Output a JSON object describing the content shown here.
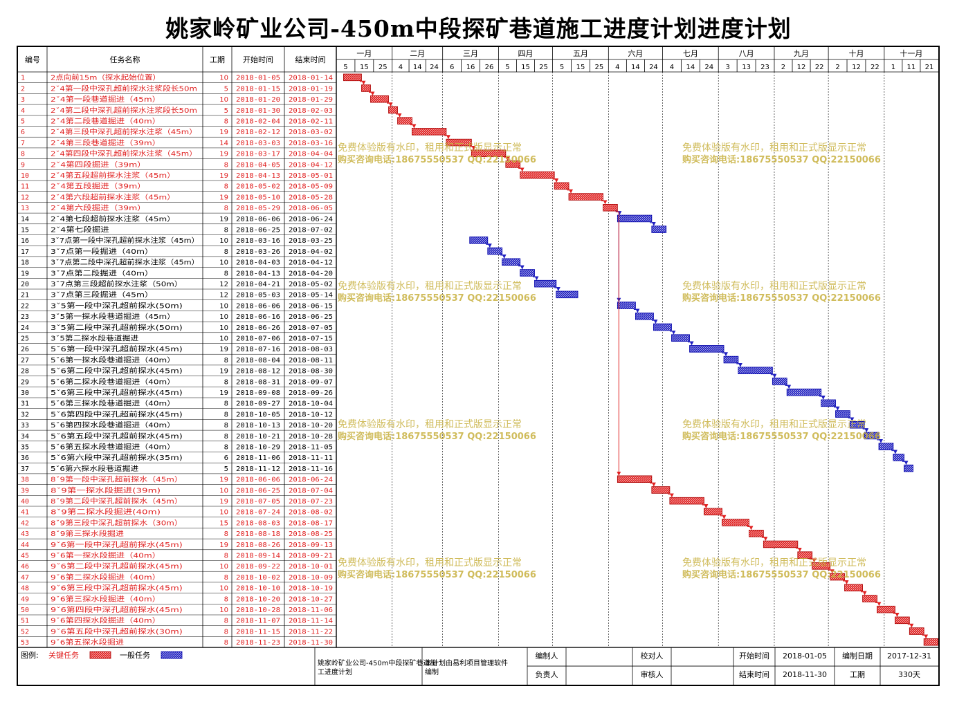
{
  "title": "姚家岭矿业公司-450m中段探矿巷道施工进度计划进度计划",
  "headers": {
    "id": "编号",
    "name": "任务名称",
    "dur": "工期",
    "start": "开始时间",
    "end": "结束时间"
  },
  "months": [
    {
      "label": "一月",
      "days": [
        "5",
        "15",
        "25"
      ]
    },
    {
      "label": "二月",
      "days": [
        "4",
        "14",
        "24"
      ]
    },
    {
      "label": "三月",
      "days": [
        "6",
        "16",
        "26"
      ]
    },
    {
      "label": "四月",
      "days": [
        "5",
        "15",
        "25"
      ]
    },
    {
      "label": "五月",
      "days": [
        "5",
        "15",
        "25"
      ]
    },
    {
      "label": "六月",
      "days": [
        "4",
        "14",
        "24"
      ]
    },
    {
      "label": "七月",
      "days": [
        "4",
        "14",
        "24"
      ]
    },
    {
      "label": "八月",
      "days": [
        "3",
        "13",
        "23"
      ]
    },
    {
      "label": "九月",
      "days": [
        "2",
        "12",
        "22"
      ]
    },
    {
      "label": "十月",
      "days": [
        "2",
        "12",
        "22"
      ]
    },
    {
      "label": "十一月",
      "days": [
        "1",
        "11",
        "21"
      ]
    }
  ],
  "tasks": [
    {
      "id": "1",
      "name": "2点向前15m（探水起始位置）",
      "dur": "10",
      "start": "2018-01-05",
      "end": "2018-01-14",
      "critical": true
    },
    {
      "id": "2",
      "name": "2ˇ4第一段中深孔超前探水注浆段长50m",
      "dur": "5",
      "start": "2018-01-15",
      "end": "2018-01-19",
      "critical": true
    },
    {
      "id": "3",
      "name": "2ˇ4第一段巷道掘进（45m）",
      "dur": "10",
      "start": "2018-01-20",
      "end": "2018-01-29",
      "critical": true
    },
    {
      "id": "4",
      "name": "2ˇ4第二段中深孔超前探水注浆段长50m",
      "dur": "5",
      "start": "2018-01-30",
      "end": "2018-02-03",
      "critical": true
    },
    {
      "id": "5",
      "name": "2ˇ4第二段巷道掘进（40m）",
      "dur": "8",
      "start": "2018-02-04",
      "end": "2018-02-11",
      "critical": true
    },
    {
      "id": "6",
      "name": "2ˇ4第三段中深孔超前探水注浆（45m）",
      "dur": "19",
      "start": "2018-02-12",
      "end": "2018-03-02",
      "critical": true
    },
    {
      "id": "7",
      "name": "2ˇ4第三段巷道掘进（39m）",
      "dur": "14",
      "start": "2018-03-03",
      "end": "2018-03-16",
      "critical": true
    },
    {
      "id": "8",
      "name": "2ˇ4第四段中深孔超前探水注浆（45m）",
      "dur": "19",
      "start": "2018-03-17",
      "end": "2018-04-04",
      "critical": true
    },
    {
      "id": "9",
      "name": "2ˇ4第四段掘进（39m）",
      "dur": "8",
      "start": "2018-04-05",
      "end": "2018-04-12",
      "critical": true
    },
    {
      "id": "10",
      "name": "2ˇ4第五段超前探水注浆（45m）",
      "dur": "19",
      "start": "2018-04-13",
      "end": "2018-05-01",
      "critical": true
    },
    {
      "id": "11",
      "name": "2ˇ4第五段掘进（39m）",
      "dur": "8",
      "start": "2018-05-02",
      "end": "2018-05-09",
      "critical": true
    },
    {
      "id": "12",
      "name": "2ˇ4第六段超前探水注浆（45m）",
      "dur": "19",
      "start": "2018-05-10",
      "end": "2018-05-28",
      "critical": true
    },
    {
      "id": "13",
      "name": "2ˇ4第六段掘进（39m）",
      "dur": "8",
      "start": "2018-05-29",
      "end": "2018-06-05",
      "critical": true
    },
    {
      "id": "14",
      "name": "2ˇ4第七段超前探水注浆（45m）",
      "dur": "19",
      "start": "2018-06-06",
      "end": "2018-06-24",
      "critical": false
    },
    {
      "id": "15",
      "name": "2ˇ4第七段掘进",
      "dur": "8",
      "start": "2018-06-25",
      "end": "2018-07-02",
      "critical": false
    },
    {
      "id": "16",
      "name": "3ˇ7点第一段中深孔超前探水注浆（45m）",
      "dur": "10",
      "start": "2018-03-16",
      "end": "2018-03-25",
      "critical": false
    },
    {
      "id": "17",
      "name": "3ˇ7点第一段掘进（40m）",
      "dur": "8",
      "start": "2018-03-26",
      "end": "2018-04-02",
      "critical": false
    },
    {
      "id": "18",
      "name": "3ˇ7点第二段中深孔超前探水注浆（45m）",
      "dur": "10",
      "start": "2018-04-03",
      "end": "2018-04-12",
      "critical": false
    },
    {
      "id": "19",
      "name": "3ˇ7点第二段掘进（40m）",
      "dur": "8",
      "start": "2018-04-13",
      "end": "2018-04-20",
      "critical": false
    },
    {
      "id": "20",
      "name": "3ˇ7点第三段超前探水注浆（50m）",
      "dur": "12",
      "start": "2018-04-21",
      "end": "2018-05-02",
      "critical": false
    },
    {
      "id": "21",
      "name": "3ˇ7点第三段掘进（45m）",
      "dur": "12",
      "start": "2018-05-03",
      "end": "2018-05-14",
      "critical": false
    },
    {
      "id": "22",
      "name": "3ˇ5第一段中深孔超前探水(50m)",
      "dur": "10",
      "start": "2018-06-06",
      "end": "2018-06-15",
      "critical": false
    },
    {
      "id": "23",
      "name": "3ˇ5第一探水段巷道掘进（45m）",
      "dur": "10",
      "start": "2018-06-16",
      "end": "2018-06-25",
      "critical": false
    },
    {
      "id": "24",
      "name": "3ˇ5第二段中深孔超前探水(50m)",
      "dur": "10",
      "start": "2018-06-26",
      "end": "2018-07-05",
      "critical": false
    },
    {
      "id": "25",
      "name": "3ˇ5第二探水段巷道掘进",
      "dur": "10",
      "start": "2018-07-06",
      "end": "2018-07-15",
      "critical": false
    },
    {
      "id": "26",
      "name": "5ˇ6第一段中深孔超前探水(45m)",
      "dur": "19",
      "start": "2018-07-16",
      "end": "2018-08-03",
      "critical": false
    },
    {
      "id": "27",
      "name": "5ˇ6第一探水段巷道掘进（40m）",
      "dur": "8",
      "start": "2018-08-04",
      "end": "2018-08-11",
      "critical": false
    },
    {
      "id": "28",
      "name": "5ˇ6第二段中深孔超前探水(45m)",
      "dur": "19",
      "start": "2018-08-12",
      "end": "2018-08-30",
      "critical": false
    },
    {
      "id": "29",
      "name": "5ˇ6第二探水段巷道掘进（40m）",
      "dur": "8",
      "start": "2018-08-31",
      "end": "2018-09-07",
      "critical": false
    },
    {
      "id": "30",
      "name": "5ˇ6第三段中深孔超前探水(45m)",
      "dur": "19",
      "start": "2018-09-08",
      "end": "2018-09-26",
      "critical": false
    },
    {
      "id": "31",
      "name": "5ˇ6第三探水段巷道掘进（40m）",
      "dur": "8",
      "start": "2018-09-27",
      "end": "2018-10-04",
      "critical": false
    },
    {
      "id": "32",
      "name": "5ˇ6第四段中深孔超前探水(45m)",
      "dur": "8",
      "start": "2018-10-05",
      "end": "2018-10-12",
      "critical": false
    },
    {
      "id": "33",
      "name": "5ˇ6第四探水段巷道掘进（40m）",
      "dur": "8",
      "start": "2018-10-13",
      "end": "2018-10-20",
      "critical": false
    },
    {
      "id": "34",
      "name": "5ˇ6第五段中深孔超前探水(45m)",
      "dur": "8",
      "start": "2018-10-21",
      "end": "2018-10-28",
      "critical": false
    },
    {
      "id": "35",
      "name": "5ˇ6第五探水段巷道掘进（40m）",
      "dur": "8",
      "start": "2018-10-29",
      "end": "2018-11-05",
      "critical": false
    },
    {
      "id": "36",
      "name": "5ˇ6第六段中深孔超前探水(35m)",
      "dur": "6",
      "start": "2018-11-06",
      "end": "2018-11-11",
      "critical": false
    },
    {
      "id": "37",
      "name": "5ˇ6第六探水段巷道掘进",
      "dur": "5",
      "start": "2018-11-12",
      "end": "2018-11-16",
      "critical": false
    },
    {
      "id": "38",
      "name": "8ˇ9第一段中深孔超前探水（45m）",
      "dur": "19",
      "start": "2018-06-06",
      "end": "2018-06-24",
      "critical": true
    },
    {
      "id": "39",
      "name": "8ˇ9第一探水段掘进(39m)",
      "dur": "10",
      "start": "2018-06-25",
      "end": "2018-07-04",
      "critical": true
    },
    {
      "id": "40",
      "name": "8ˇ9第二段中深孔超前探水（45m）",
      "dur": "19",
      "start": "2018-07-05",
      "end": "2018-07-23",
      "critical": true
    },
    {
      "id": "41",
      "name": "8ˇ9第二探水段掘进(40m)",
      "dur": "10",
      "start": "2018-07-24",
      "end": "2018-08-02",
      "critical": true
    },
    {
      "id": "42",
      "name": "8ˇ9第三段中深孔超前探水（30m）",
      "dur": "15",
      "start": "2018-08-03",
      "end": "2018-08-17",
      "critical": true
    },
    {
      "id": "43",
      "name": "8ˇ9第三探水段掘进",
      "dur": "8",
      "start": "2018-08-18",
      "end": "2018-08-25",
      "critical": true
    },
    {
      "id": "44",
      "name": "9ˇ6第一段中深孔超前探水(45m)",
      "dur": "19",
      "start": "2018-08-26",
      "end": "2018-09-13",
      "critical": true
    },
    {
      "id": "45",
      "name": "9ˇ6第一探水段掘进（40m）",
      "dur": "8",
      "start": "2018-09-14",
      "end": "2018-09-21",
      "critical": true
    },
    {
      "id": "46",
      "name": "9ˇ6第二段中深孔超前探水(45m)",
      "dur": "10",
      "start": "2018-09-22",
      "end": "2018-10-01",
      "critical": true
    },
    {
      "id": "47",
      "name": "9ˇ6第二探水段掘进（40m）",
      "dur": "8",
      "start": "2018-10-02",
      "end": "2018-10-09",
      "critical": true
    },
    {
      "id": "48",
      "name": "9ˇ6第三段中深孔超前探水(45m)",
      "dur": "10",
      "start": "2018-10-10",
      "end": "2018-10-19",
      "critical": true
    },
    {
      "id": "49",
      "name": "9ˇ6第三探水段掘进（40m）",
      "dur": "8",
      "start": "2018-10-20",
      "end": "2018-10-27",
      "critical": true
    },
    {
      "id": "50",
      "name": "9ˇ6第四段中深孔超前探水(45m)",
      "dur": "10",
      "start": "2018-10-28",
      "end": "2018-11-06",
      "critical": true
    },
    {
      "id": "51",
      "name": "9ˇ6第四探水段掘进（40m）",
      "dur": "8",
      "start": "2018-11-07",
      "end": "2018-11-14",
      "critical": true
    },
    {
      "id": "52",
      "name": "9ˇ6第五段中深孔超前探水(30m)",
      "dur": "8",
      "start": "2018-11-15",
      "end": "2018-11-22",
      "critical": true
    },
    {
      "id": "53",
      "name": "9ˇ6第五探水段掘进",
      "dur": "8",
      "start": "2018-11-23",
      "end": "2018-11-30",
      "critical": true
    }
  ],
  "links": [
    [
      1,
      2
    ],
    [
      2,
      3
    ],
    [
      3,
      4
    ],
    [
      4,
      5
    ],
    [
      5,
      6
    ],
    [
      6,
      7
    ],
    [
      7,
      8
    ],
    [
      8,
      9
    ],
    [
      9,
      10
    ],
    [
      10,
      11
    ],
    [
      11,
      12
    ],
    [
      12,
      13
    ],
    [
      13,
      14
    ],
    [
      14,
      15
    ],
    [
      16,
      17
    ],
    [
      17,
      18
    ],
    [
      18,
      19
    ],
    [
      19,
      20
    ],
    [
      20,
      21
    ],
    [
      22,
      23
    ],
    [
      23,
      24
    ],
    [
      24,
      25
    ],
    [
      25,
      26
    ],
    [
      26,
      27
    ],
    [
      27,
      28
    ],
    [
      28,
      29
    ],
    [
      29,
      30
    ],
    [
      30,
      31
    ],
    [
      31,
      32
    ],
    [
      32,
      33
    ],
    [
      33,
      34
    ],
    [
      34,
      35
    ],
    [
      35,
      36
    ],
    [
      36,
      37
    ],
    [
      38,
      39
    ],
    [
      39,
      40
    ],
    [
      40,
      41
    ],
    [
      41,
      42
    ],
    [
      42,
      43
    ],
    [
      43,
      44
    ],
    [
      44,
      45
    ],
    [
      45,
      46
    ],
    [
      46,
      47
    ],
    [
      47,
      48
    ],
    [
      48,
      49
    ],
    [
      49,
      50
    ],
    [
      50,
      51
    ],
    [
      51,
      52
    ],
    [
      52,
      53
    ]
  ],
  "branch_links": [
    {
      "from": 13,
      "to": 22,
      "color": "blue"
    },
    {
      "from": 13,
      "to": 38,
      "color": "red"
    }
  ],
  "watermark": {
    "line1": "免费体验版有水印，租用和正式版显示正常",
    "line2": "购买咨询电话:18675550537 QQ:22150066"
  },
  "footer": {
    "legend_label": "图例:",
    "critical_label": "关键任务",
    "normal_label": "一般任务",
    "project_name": "姚家岭矿业公司-450m中段探矿巷道施工进度计划",
    "software_note": "本计划由易利项目管理软件编制",
    "compiler_label": "编制人",
    "checker_label": "校对人",
    "owner_label": "负责人",
    "reviewer_label": "审核人",
    "start_label": "开始时间",
    "start_value": "2018-01-05",
    "end_label": "结束时间",
    "end_value": "2018-11-30",
    "made_label": "编制日期",
    "made_value": "2017-12-31",
    "dur_label": "工期",
    "dur_value": "330天"
  },
  "colors": {
    "critical": "#e02020",
    "normal": "#2020c0",
    "watermark": "#c8b040"
  }
}
